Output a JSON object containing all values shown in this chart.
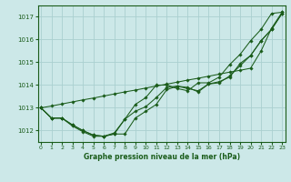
{
  "xlabel": "Graphe pression niveau de la mer (hPa)",
  "ylim": [
    1011.5,
    1017.5
  ],
  "xlim": [
    -0.3,
    23.3
  ],
  "yticks": [
    1012,
    1013,
    1014,
    1015,
    1016,
    1017
  ],
  "xtick_labels": [
    "0",
    "1",
    "2",
    "3",
    "4",
    "5",
    "6",
    "7",
    "8",
    "9",
    "10",
    "11",
    "12",
    "13",
    "14",
    "15",
    "16",
    "17",
    "18",
    "19",
    "20",
    "21",
    "22",
    "23"
  ],
  "background_color": "#cce8e8",
  "grid_color": "#aad0d0",
  "line_color": "#1a5c1a",
  "series": [
    [
      1013.0,
      1012.55,
      1012.55,
      1012.25,
      1012.0,
      1011.8,
      1011.75,
      1011.85,
      1011.85,
      1012.55,
      1012.85,
      1013.15,
      1013.8,
      1013.95,
      1013.85,
      1013.75,
      1014.05,
      1014.1,
      1014.4,
      1014.85,
      1015.3,
      1015.95,
      1016.45,
      1017.15
    ],
    [
      1013.0,
      1012.55,
      1012.55,
      1012.2,
      1011.95,
      1011.75,
      1011.75,
      1011.85,
      1012.5,
      1012.85,
      1013.05,
      1013.45,
      1013.9,
      1013.95,
      1013.9,
      1013.7,
      1014.05,
      1014.15,
      1014.35,
      1014.95,
      1015.3,
      1015.95,
      1016.45,
      1017.15
    ],
    [
      1013.0,
      1012.55,
      1012.55,
      1012.25,
      1012.0,
      1011.8,
      1011.75,
      1011.9,
      1012.5,
      1013.15,
      1013.45,
      1014.0,
      1014.0,
      1013.85,
      1013.75,
      1014.1,
      1014.1,
      1014.35,
      1014.9,
      1015.35,
      1015.95,
      1016.45,
      1017.15,
      1017.2
    ],
    [
      1013.0,
      1013.08,
      1013.17,
      1013.26,
      1013.35,
      1013.43,
      1013.52,
      1013.61,
      1013.7,
      1013.78,
      1013.87,
      1013.96,
      1014.04,
      1014.13,
      1014.22,
      1014.3,
      1014.39,
      1014.48,
      1014.57,
      1014.65,
      1014.74,
      1015.5,
      1016.5,
      1017.2
    ]
  ]
}
